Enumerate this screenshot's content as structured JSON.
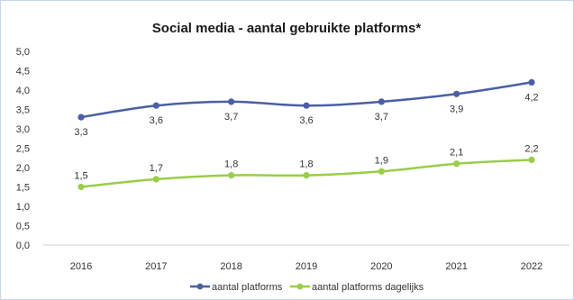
{
  "chart_data": {
    "type": "line",
    "title": "Social media - aantal gebruikte platforms*",
    "xlabel": "",
    "ylabel": "",
    "categories": [
      "2016",
      "2017",
      "2018",
      "2019",
      "2020",
      "2021",
      "2022"
    ],
    "y_ticks": [
      "0,0",
      "0,5",
      "1,0",
      "1,5",
      "2,0",
      "2,5",
      "3,0",
      "3,5",
      "4,0",
      "4,5",
      "5,0"
    ],
    "ylim": [
      0,
      5
    ],
    "grid": false,
    "legend_position": "bottom",
    "series": [
      {
        "name": "aantal platforms",
        "color": "#4a5fa5",
        "values": [
          3.3,
          3.6,
          3.7,
          3.6,
          3.7,
          3.9,
          4.2
        ],
        "labels": [
          "3,3",
          "3,6",
          "3,7",
          "3,6",
          "3,7",
          "3,9",
          "4,2"
        ],
        "label_position": "below"
      },
      {
        "name": "aantal platforms dagelijks",
        "color": "#9acd4a",
        "values": [
          1.5,
          1.7,
          1.8,
          1.8,
          1.9,
          2.1,
          2.2
        ],
        "labels": [
          "1,5",
          "1,7",
          "1,8",
          "1,8",
          "1,9",
          "2,1",
          "2,2"
        ],
        "label_position": "above"
      }
    ]
  }
}
